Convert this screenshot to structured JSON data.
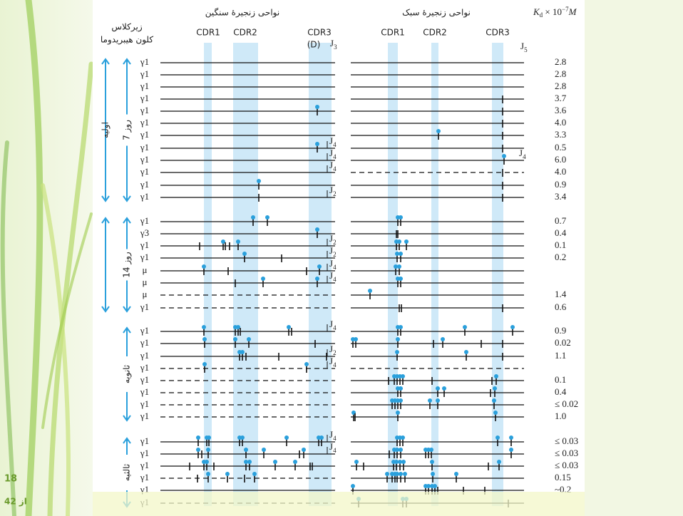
{
  "slide": {
    "page": "18",
    "total": "از 42"
  },
  "figure": {
    "header": {
      "heavy_title": "نواحی زنجیرهٔ سنگین",
      "light_title": "نواحی زنجیرهٔ سبک",
      "subclass": "زیرکلاس",
      "clone": "کلون هیبریدوما",
      "heavy_cdr": [
        "CDR1",
        "CDR2",
        "CDR3"
      ],
      "light_cdr": [
        "CDR1",
        "CDR2",
        "CDR3"
      ],
      "d_label": "(D)",
      "heavy_j": [
        "J",
        "3"
      ],
      "light_j": [
        "J",
        "5"
      ],
      "kd": [
        "K",
        "d",
        " × 10",
        "−7",
        "M"
      ]
    },
    "groups": [
      {
        "outer": "اولیه",
        "inner": "روز 7"
      },
      {
        "inner": "روز 14"
      },
      {
        "inner": "ثانویه"
      },
      {
        "inner": "ثالثیه"
      }
    ],
    "rows": [
      {
        "isotype": "γ1",
        "kd": "2.8"
      },
      {
        "isotype": "γ1",
        "kd": "2.8"
      },
      {
        "isotype": "γ1",
        "kd": "2.8"
      },
      {
        "isotype": "γ1",
        "kd": "3.7"
      },
      {
        "isotype": "γ1",
        "kd": "3.6"
      },
      {
        "isotype": "γ1",
        "kd": "4.0"
      },
      {
        "isotype": "γ1",
        "kd": "3.3"
      },
      {
        "isotype": "γ1",
        "kd": "0.5",
        "heavy_j": [
          "J",
          "4"
        ]
      },
      {
        "isotype": "γ1",
        "kd": "6.0",
        "heavy_j": [
          "J",
          "4"
        ],
        "light_j": [
          "J",
          "4"
        ]
      },
      {
        "isotype": "γ1",
        "kd": "4.0",
        "heavy_j": [
          "J",
          "4"
        ]
      },
      {
        "isotype": "γ1",
        "kd": "0.9"
      },
      {
        "isotype": "γ1",
        "kd": "3.4",
        "heavy_j": [
          "J",
          "2"
        ]
      },
      {
        "isotype": "γ1",
        "kd": "0.7"
      },
      {
        "isotype": "γ3",
        "kd": "0.4"
      },
      {
        "isotype": "γ1",
        "kd": "0.1",
        "heavy_j": [
          "J",
          "2"
        ]
      },
      {
        "isotype": "γ1",
        "kd": "0.2",
        "heavy_j": [
          "J",
          "2"
        ]
      },
      {
        "isotype": "μ",
        "kd": null,
        "heavy_j": [
          "J",
          "4"
        ]
      },
      {
        "isotype": "μ",
        "kd": null,
        "heavy_j": [
          "J",
          "4"
        ]
      },
      {
        "isotype": "μ",
        "kd": "1.4"
      },
      {
        "isotype": "γ1",
        "kd": "0.6"
      },
      {
        "isotype": "γ1",
        "kd": "0.9",
        "heavy_j": [
          "J",
          "4"
        ]
      },
      {
        "isotype": "γ1",
        "kd": "0.02"
      },
      {
        "isotype": "γ1",
        "kd": "1.1",
        "heavy_j": [
          "J",
          "2"
        ]
      },
      {
        "isotype": "γ1",
        "kd": null,
        "heavy_j": [
          "J",
          "4"
        ]
      },
      {
        "isotype": "γ1",
        "kd": "0.1"
      },
      {
        "isotype": "γ1",
        "kd": "0.4"
      },
      {
        "isotype": "γ1",
        "kd": "≤ 0.02"
      },
      {
        "isotype": "γ1",
        "kd": "1.0"
      },
      {
        "isotype": "γ1",
        "kd": "≤ 0.03",
        "heavy_j": [
          "J",
          "4"
        ]
      },
      {
        "isotype": "γ1",
        "kd": "≤ 0.03",
        "heavy_j": [
          "J",
          "4"
        ]
      },
      {
        "isotype": "γ1",
        "kd": "≤ 0.03"
      },
      {
        "isotype": "γ1",
        "kd": "0.15"
      },
      {
        "isotype": "γ1",
        "kd": "~0.2"
      },
      {
        "isotype": "γ1",
        "kd": null
      }
    ]
  }
}
